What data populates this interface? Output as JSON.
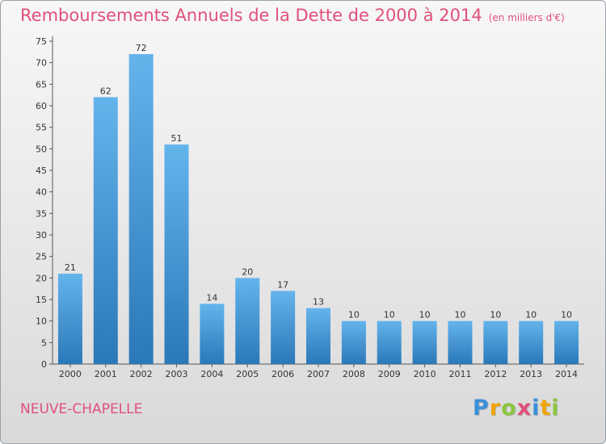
{
  "title": "Remboursements Annuels de la Dette de 2000 à 2014",
  "unit": "(en milliers d'€)",
  "commune": "NEUVE-CHAPELLE",
  "logo": {
    "letters": [
      "P",
      "r",
      "o",
      "x",
      "i",
      "t",
      "i"
    ],
    "colors": [
      "#3b8fd9",
      "#f0a400",
      "#8cc63f",
      "#e0507a",
      "#3b8fd9",
      "#f0a400",
      "#8cc63f"
    ]
  },
  "colors": {
    "title": "#e0507a",
    "bar_top": "#64b4ec",
    "bar_bottom": "#2a78b8"
  },
  "chart_data": {
    "type": "bar",
    "title": "Remboursements Annuels de la Dette de 2000 à 2014",
    "xlabel": "",
    "ylabel": "",
    "categories": [
      "2000",
      "2001",
      "2002",
      "2003",
      "2004",
      "2005",
      "2006",
      "2007",
      "2008",
      "2009",
      "2010",
      "2011",
      "2012",
      "2013",
      "2014"
    ],
    "values": [
      21,
      62,
      72,
      51,
      14,
      20,
      17,
      13,
      10,
      10,
      10,
      10,
      10,
      10,
      10
    ],
    "ylim": [
      0,
      75
    ],
    "yticks": [
      0,
      5,
      10,
      15,
      20,
      25,
      30,
      35,
      40,
      45,
      50,
      55,
      60,
      65,
      70,
      75
    ],
    "grid": false,
    "data_labels": true
  }
}
